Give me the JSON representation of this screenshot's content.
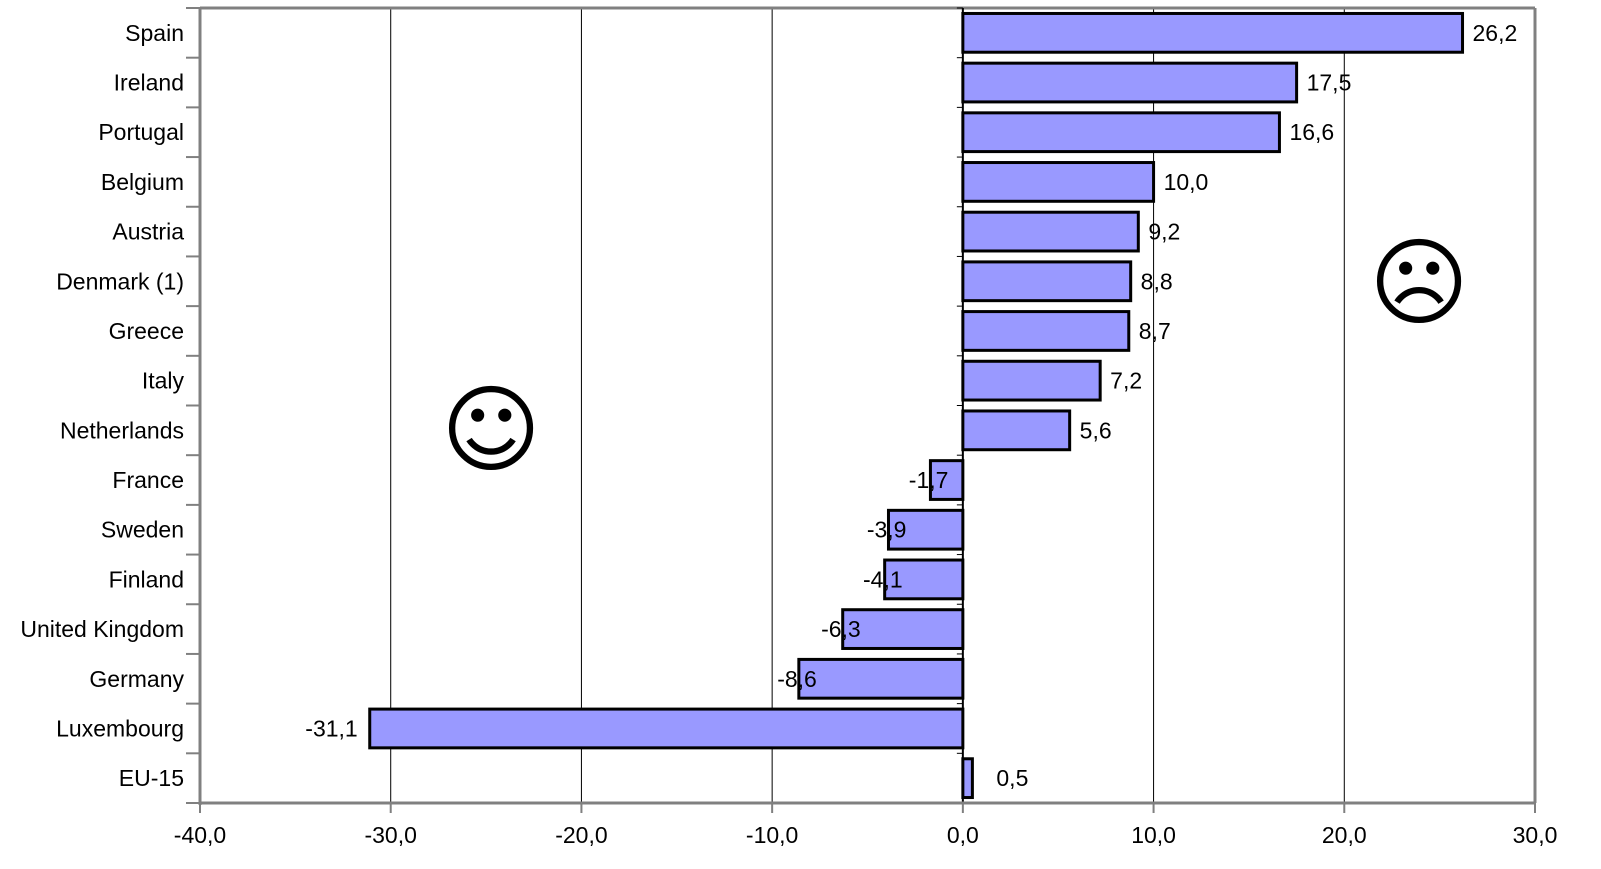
{
  "chart_data": {
    "type": "bar",
    "orientation": "horizontal",
    "categories": [
      "Spain",
      "Ireland",
      "Portugal",
      "Belgium",
      "Austria",
      "Denmark (1)",
      "Greece",
      "Italy",
      "Netherlands",
      "France",
      "Sweden",
      "Finland",
      "United Kingdom",
      "Germany",
      "Luxembourg",
      "EU-15"
    ],
    "values": [
      26.2,
      17.5,
      16.6,
      10.0,
      9.2,
      8.8,
      8.7,
      7.2,
      5.6,
      -1.7,
      -3.9,
      -4.1,
      -6.3,
      -8.6,
      -31.1,
      0.5
    ],
    "value_labels": [
      "26,2",
      "17,5",
      "16,6",
      "10,0",
      "9,2",
      "8,8",
      "8,7",
      "7,2",
      "5,6",
      "-1,7",
      "-3,9",
      "-4,1",
      "-6,3",
      "-8,6",
      "-31,1",
      "0,5"
    ],
    "xlim": [
      -40,
      30
    ],
    "xticks": [
      -40,
      -30,
      -20,
      -10,
      0,
      10,
      20,
      30
    ],
    "xtick_labels": [
      "-40,0",
      "-30,0",
      "-20,0",
      "-10,0",
      "0,0",
      "10,0",
      "20,0",
      "30,0"
    ],
    "title": "",
    "xlabel": "",
    "ylabel": "",
    "grid": "vertical",
    "legend": "none",
    "bar_color": "#9999ff",
    "bar_edge_color": "#000000"
  },
  "annotations": {
    "smiley_face": "☺",
    "frowny_face": "☹"
  }
}
